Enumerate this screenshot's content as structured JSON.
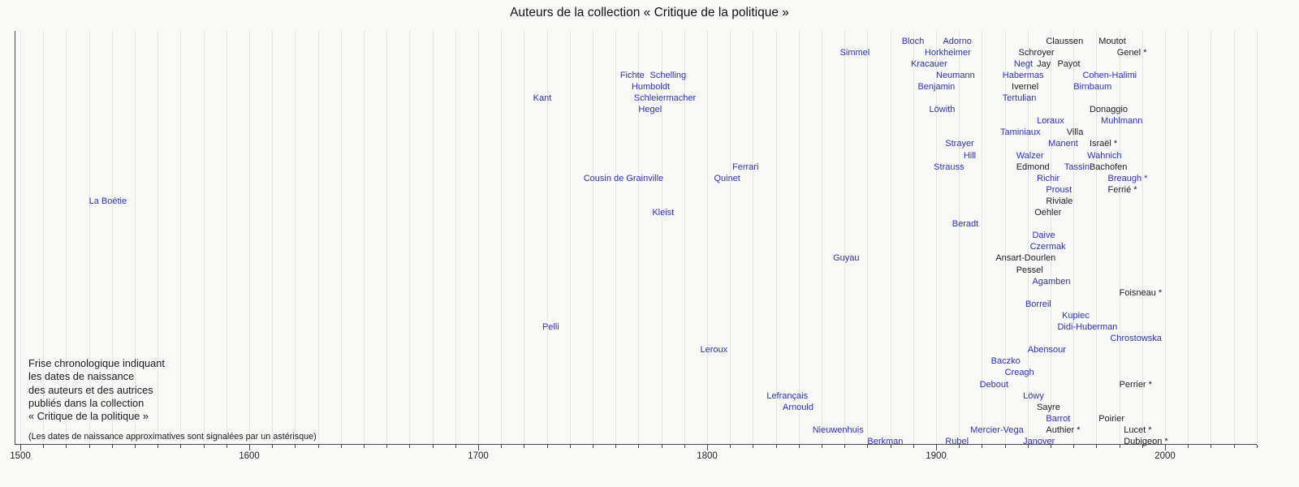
{
  "title": "Auteurs de la collection « Critique de la politique »",
  "caption": {
    "lines": [
      "Frise chronologique indiquant",
      "les dates de naissance",
      "des auteurs et des autrices",
      "publiés dans la collection",
      "« Critique de la politique »"
    ],
    "note": "(Les dates de naissance approximatives sont signalées par un astérisque)"
  },
  "colors": {
    "link_blue": "#2d2fc2",
    "plain_black": "#202122",
    "grid": "#e4e4e2",
    "axis": "#4a4a4a",
    "background": "#f9f9f8"
  },
  "chart_data": {
    "type": "scatter",
    "description": "Timeline of authors' birth years; label left edge marks birth year; blue = linked name, black = plain text; * = approximate date",
    "xlabel": "",
    "ylabel": "",
    "xlim": [
      1497,
      2040
    ],
    "x_ticks_labeled": [
      1500,
      1600,
      1700,
      1800,
      1900,
      2000
    ],
    "x_minor_step": 10,
    "grid": true,
    "points": [
      {
        "label": "Bloch",
        "year": 1885,
        "row": 0,
        "link": true,
        "approx": false
      },
      {
        "label": "Adorno",
        "year": 1903,
        "row": 0,
        "link": true,
        "approx": false
      },
      {
        "label": "Claussen",
        "year": 1948,
        "row": 0,
        "link": false,
        "approx": false
      },
      {
        "label": "Moutot",
        "year": 1971,
        "row": 0,
        "link": false,
        "approx": false
      },
      {
        "label": "Simmel",
        "year": 1858,
        "row": 1,
        "link": true,
        "approx": false
      },
      {
        "label": "Horkheimer",
        "year": 1895,
        "row": 1,
        "link": true,
        "approx": false
      },
      {
        "label": "Schroyer",
        "year": 1936,
        "row": 1,
        "link": false,
        "approx": false
      },
      {
        "label": "Genel",
        "year": 1979,
        "row": 1,
        "link": false,
        "approx": true
      },
      {
        "label": "Kracauer",
        "year": 1889,
        "row": 2,
        "link": true,
        "approx": false
      },
      {
        "label": "Negt",
        "year": 1934,
        "row": 2,
        "link": true,
        "approx": false
      },
      {
        "label": "Jay",
        "year": 1944,
        "row": 2,
        "link": false,
        "approx": false
      },
      {
        "label": "Payot",
        "year": 1953,
        "row": 2,
        "link": false,
        "approx": false
      },
      {
        "label": "Fichte",
        "year": 1762,
        "row": 3,
        "link": true,
        "approx": false
      },
      {
        "label": "Schelling",
        "year": 1775,
        "row": 3,
        "link": true,
        "approx": false
      },
      {
        "label": "Neumann",
        "year": 1900,
        "row": 3,
        "link": true,
        "approx": false
      },
      {
        "label": "Habermas",
        "year": 1929,
        "row": 3,
        "link": true,
        "approx": false
      },
      {
        "label": "Cohen-Halimi",
        "year": 1964,
        "row": 3,
        "link": true,
        "approx": false
      },
      {
        "label": "Humboldt",
        "year": 1767,
        "row": 4,
        "link": true,
        "approx": false
      },
      {
        "label": "Benjamin",
        "year": 1892,
        "row": 4,
        "link": true,
        "approx": false
      },
      {
        "label": "Ivernel",
        "year": 1933,
        "row": 4,
        "link": false,
        "approx": false
      },
      {
        "label": "Birnbaum",
        "year": 1960,
        "row": 4,
        "link": true,
        "approx": false
      },
      {
        "label": "Kant",
        "year": 1724,
        "row": 5,
        "link": true,
        "approx": false
      },
      {
        "label": "Schleiermacher",
        "year": 1768,
        "row": 5,
        "link": true,
        "approx": false
      },
      {
        "label": "Tertulian",
        "year": 1929,
        "row": 5,
        "link": true,
        "approx": false
      },
      {
        "label": "Hegel",
        "year": 1770,
        "row": 6,
        "link": true,
        "approx": false
      },
      {
        "label": "Löwith",
        "year": 1897,
        "row": 6,
        "link": true,
        "approx": false
      },
      {
        "label": "Donaggio",
        "year": 1967,
        "row": 6,
        "link": false,
        "approx": false
      },
      {
        "label": "Loraux",
        "year": 1944,
        "row": 7,
        "link": true,
        "approx": false
      },
      {
        "label": "Muhlmann",
        "year": 1972,
        "row": 7,
        "link": true,
        "approx": false
      },
      {
        "label": "Taminiaux",
        "year": 1928,
        "row": 8,
        "link": true,
        "approx": false
      },
      {
        "label": "Villa",
        "year": 1957,
        "row": 8,
        "link": false,
        "approx": false
      },
      {
        "label": "Strayer",
        "year": 1904,
        "row": 9,
        "link": true,
        "approx": false
      },
      {
        "label": "Manent",
        "year": 1949,
        "row": 9,
        "link": true,
        "approx": false
      },
      {
        "label": "Israël",
        "year": 1967,
        "row": 9,
        "link": false,
        "approx": true
      },
      {
        "label": "Hill",
        "year": 1912,
        "row": 10,
        "link": true,
        "approx": false
      },
      {
        "label": "Walzer",
        "year": 1935,
        "row": 10,
        "link": true,
        "approx": false
      },
      {
        "label": "Wahnich",
        "year": 1966,
        "row": 10,
        "link": true,
        "approx": false
      },
      {
        "label": "Ferrari",
        "year": 1811,
        "row": 11,
        "link": true,
        "approx": false
      },
      {
        "label": "Strauss",
        "year": 1899,
        "row": 11,
        "link": true,
        "approx": false
      },
      {
        "label": "Edmond",
        "year": 1935,
        "row": 11,
        "link": false,
        "approx": false
      },
      {
        "label": "Tassin",
        "year": 1956,
        "row": 11,
        "link": true,
        "approx": false
      },
      {
        "label": "Bachofen",
        "year": 1967,
        "row": 11,
        "link": false,
        "approx": false
      },
      {
        "label": "Cousin de Grainville",
        "year": 1746,
        "row": 12,
        "link": true,
        "approx": false
      },
      {
        "label": "Quinet",
        "year": 1803,
        "row": 12,
        "link": true,
        "approx": false
      },
      {
        "label": "Richir",
        "year": 1944,
        "row": 12,
        "link": true,
        "approx": false
      },
      {
        "label": "Breaugh",
        "year": 1975,
        "row": 12,
        "link": true,
        "approx": true
      },
      {
        "label": "Proust",
        "year": 1948,
        "row": 13,
        "link": true,
        "approx": false
      },
      {
        "label": "Ferrié",
        "year": 1975,
        "row": 13,
        "link": false,
        "approx": true
      },
      {
        "label": "La Boétie",
        "year": 1530,
        "row": 14,
        "link": true,
        "approx": false
      },
      {
        "label": "Riviale",
        "year": 1948,
        "row": 14,
        "link": false,
        "approx": false
      },
      {
        "label": "Kleist",
        "year": 1776,
        "row": 15,
        "link": true,
        "approx": false
      },
      {
        "label": "Oehler",
        "year": 1943,
        "row": 15,
        "link": false,
        "approx": false
      },
      {
        "label": "Beradt",
        "year": 1907,
        "row": 16,
        "link": true,
        "approx": false
      },
      {
        "label": "Daive",
        "year": 1942,
        "row": 17,
        "link": true,
        "approx": false
      },
      {
        "label": "Czermak",
        "year": 1941,
        "row": 18,
        "link": true,
        "approx": false
      },
      {
        "label": "Guyau",
        "year": 1855,
        "row": 19,
        "link": true,
        "approx": false
      },
      {
        "label": "Ansart-Dourlen",
        "year": 1926,
        "row": 19,
        "link": false,
        "approx": false
      },
      {
        "label": "Pessel",
        "year": 1935,
        "row": 20,
        "link": false,
        "approx": false
      },
      {
        "label": "Agamben",
        "year": 1942,
        "row": 21,
        "link": true,
        "approx": false
      },
      {
        "label": "Foisneau",
        "year": 1980,
        "row": 22,
        "link": false,
        "approx": true
      },
      {
        "label": "Borreil",
        "year": 1939,
        "row": 23,
        "link": true,
        "approx": false
      },
      {
        "label": "Kupiec",
        "year": 1955,
        "row": 24,
        "link": true,
        "approx": false
      },
      {
        "label": "Pelli",
        "year": 1728,
        "row": 25,
        "link": true,
        "approx": false
      },
      {
        "label": "Didi-Huberman",
        "year": 1953,
        "row": 25,
        "link": true,
        "approx": false
      },
      {
        "label": "Chrostowska",
        "year": 1976,
        "row": 26,
        "link": true,
        "approx": false
      },
      {
        "label": "Leroux",
        "year": 1797,
        "row": 27,
        "link": true,
        "approx": false
      },
      {
        "label": "Abensour",
        "year": 1940,
        "row": 27,
        "link": true,
        "approx": false
      },
      {
        "label": "Baczko",
        "year": 1924,
        "row": 28,
        "link": true,
        "approx": false
      },
      {
        "label": "Creagh",
        "year": 1930,
        "row": 29,
        "link": true,
        "approx": false
      },
      {
        "label": "Debout",
        "year": 1919,
        "row": 30,
        "link": true,
        "approx": false
      },
      {
        "label": "Perrier",
        "year": 1980,
        "row": 30,
        "link": false,
        "approx": true
      },
      {
        "label": "Lefrançais",
        "year": 1826,
        "row": 31,
        "link": true,
        "approx": false
      },
      {
        "label": "Löwy",
        "year": 1938,
        "row": 31,
        "link": true,
        "approx": false
      },
      {
        "label": "Arnould",
        "year": 1833,
        "row": 32,
        "link": true,
        "approx": false
      },
      {
        "label": "Sayre",
        "year": 1944,
        "row": 32,
        "link": false,
        "approx": false
      },
      {
        "label": "Barrot",
        "year": 1948,
        "row": 33,
        "link": true,
        "approx": false
      },
      {
        "label": "Poirier",
        "year": 1971,
        "row": 33,
        "link": false,
        "approx": false
      },
      {
        "label": "Nieuwenhuis",
        "year": 1846,
        "row": 34,
        "link": true,
        "approx": false
      },
      {
        "label": "Mercier-Vega",
        "year": 1915,
        "row": 34,
        "link": true,
        "approx": false
      },
      {
        "label": "Authier",
        "year": 1948,
        "row": 34,
        "link": false,
        "approx": true
      },
      {
        "label": "Lucet",
        "year": 1982,
        "row": 34,
        "link": false,
        "approx": true
      },
      {
        "label": "Berkman",
        "year": 1870,
        "row": 35,
        "link": true,
        "approx": false
      },
      {
        "label": "Rubel",
        "year": 1904,
        "row": 35,
        "link": true,
        "approx": false
      },
      {
        "label": "Janover",
        "year": 1938,
        "row": 35,
        "link": true,
        "approx": false
      },
      {
        "label": "Dubigeon",
        "year": 1982,
        "row": 35,
        "link": false,
        "approx": true
      }
    ]
  }
}
